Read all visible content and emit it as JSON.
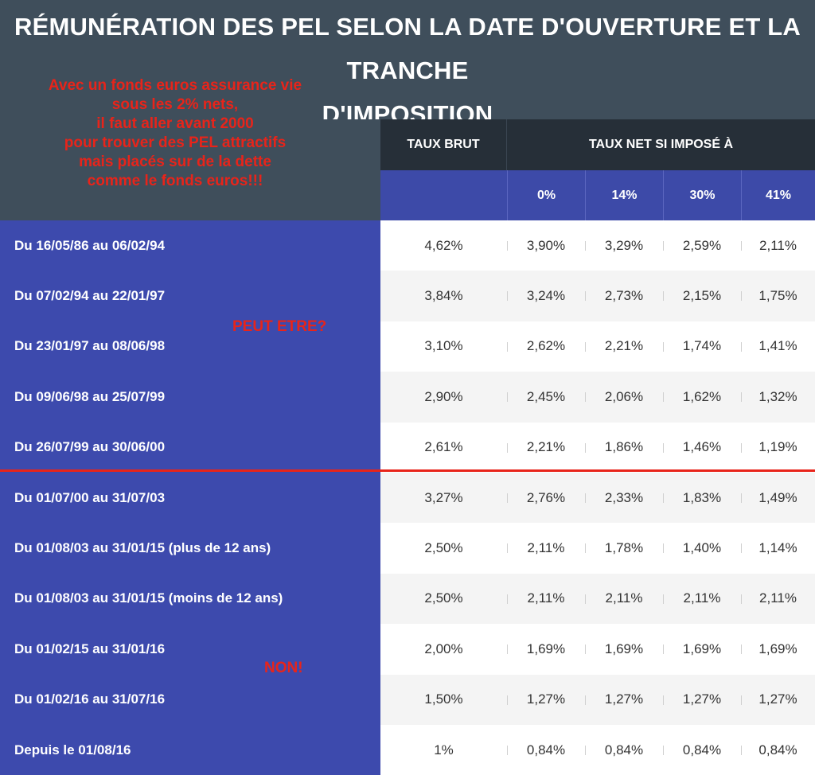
{
  "chart_data": {
    "type": "table",
    "title_lines": [
      "RÉMUNÉRATION DES PEL SELON LA DATE D'OUVERTURE ET LA TRANCHE",
      "D'IMPOSITION"
    ],
    "header_brut": "TAUX BRUT",
    "header_net": "TAUX NET SI IMPOSÉ À",
    "columns": [
      "0%",
      "14%",
      "30%",
      "41%"
    ],
    "rows": [
      {
        "label": "Du 16/05/86 au 06/02/94",
        "brut": "4,62%",
        "net": [
          "3,90%",
          "3,29%",
          "2,59%",
          "2,11%"
        ]
      },
      {
        "label": "Du 07/02/94 au 22/01/97",
        "brut": "3,84%",
        "net": [
          "3,24%",
          "2,73%",
          "2,15%",
          "1,75%"
        ]
      },
      {
        "label": "Du 23/01/97 au 08/06/98",
        "brut": "3,10%",
        "net": [
          "2,62%",
          "2,21%",
          "1,74%",
          "1,41%"
        ]
      },
      {
        "label": "Du 09/06/98 au 25/07/99",
        "brut": "2,90%",
        "net": [
          "2,45%",
          "2,06%",
          "1,62%",
          "1,32%"
        ]
      },
      {
        "label": "Du 26/07/99 au 30/06/00",
        "brut": "2,61%",
        "net": [
          "2,21%",
          "1,86%",
          "1,46%",
          "1,19%"
        ]
      },
      {
        "label": "Du 01/07/00 au 31/07/03",
        "brut": "3,27%",
        "net": [
          "2,76%",
          "2,33%",
          "1,83%",
          "1,49%"
        ]
      },
      {
        "label": "Du 01/08/03 au 31/01/15 (plus de 12 ans)",
        "brut": "2,50%",
        "net": [
          "2,11%",
          "1,78%",
          "1,40%",
          "1,14%"
        ]
      },
      {
        "label": "Du 01/08/03 au 31/01/15 (moins de 12 ans)",
        "brut": "2,50%",
        "net": [
          "2,11%",
          "2,11%",
          "2,11%",
          "2,11%"
        ]
      },
      {
        "label": "Du 01/02/15 au 31/01/16",
        "brut": "2,00%",
        "net": [
          "1,69%",
          "1,69%",
          "1,69%",
          "1,69%"
        ]
      },
      {
        "label": "Du 01/02/16 au 31/07/16",
        "brut": "1,50%",
        "net": [
          "1,27%",
          "1,27%",
          "1,27%",
          "1,27%"
        ]
      },
      {
        "label": "Depuis le 01/08/16",
        "brut": "1%",
        "net": [
          "0,84%",
          "0,84%",
          "0,84%",
          "0,84%"
        ]
      }
    ]
  },
  "annotations": {
    "top_note": [
      "Avec un fonds euros assurance vie",
      "sous les 2% nets,",
      "il faut aller avant 2000",
      "pour trouver des PEL attractifs",
      "mais placés sur de la dette",
      "comme le fonds euros!!!"
    ],
    "mid_note": "PEUT ETRE?",
    "bottom_note": "NON!"
  },
  "colors": {
    "annotation_red": "#e8241a",
    "row_panel_blue": "#3d4aad",
    "header_dark": "#262f38",
    "row_alt": "#f4f4f4",
    "row_white": "#ffffff"
  }
}
